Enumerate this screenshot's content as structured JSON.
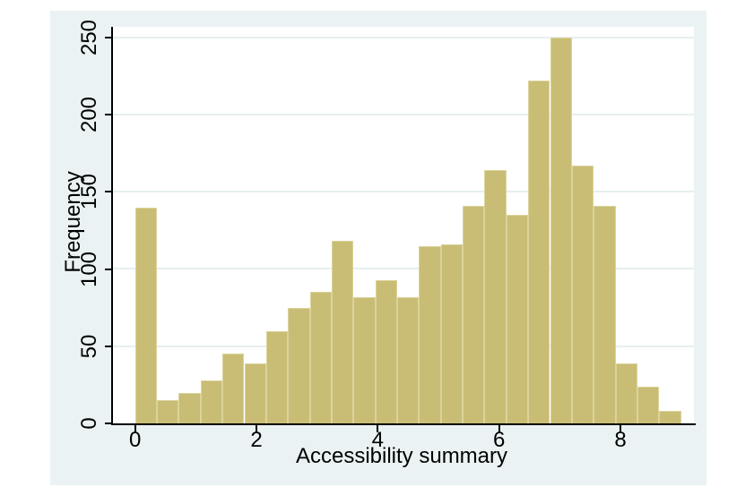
{
  "figure": {
    "page_background": "#ffffff",
    "graph_region_background": "#eaf2f3",
    "plot_background": "#ffffff",
    "gridline_color": "#e7eff0",
    "axis_color": "#000000",
    "text_color": "#000000",
    "bar_fill_color": "#c9bd75",
    "bar_edge_color": "#dbd39c"
  },
  "chart_data": {
    "type": "bar",
    "subtype": "histogram",
    "title": "",
    "xlabel": "Accessibility summary",
    "ylabel": "Frequency",
    "bin_start": 0,
    "bin_width": 0.36,
    "bin_count": 25,
    "frequencies": [
      140,
      15,
      20,
      28,
      45,
      39,
      60,
      75,
      85,
      118,
      82,
      93,
      82,
      115,
      116,
      141,
      164,
      135,
      222,
      250,
      167,
      141,
      39,
      24,
      8
    ],
    "x_ticks": [
      0,
      2,
      4,
      6,
      8
    ],
    "x_tick_labels": [
      "0",
      "2",
      "4",
      "6",
      "8"
    ],
    "y_ticks": [
      0,
      50,
      100,
      150,
      200,
      250
    ],
    "y_tick_labels": [
      "0",
      "50",
      "100",
      "150",
      "200",
      "250"
    ],
    "xlim": [
      -0.39,
      9.21
    ],
    "ylim": [
      0,
      256
    ],
    "grid": true,
    "gridlines_at": [
      50,
      100,
      150,
      200,
      250
    ],
    "legend": false
  }
}
